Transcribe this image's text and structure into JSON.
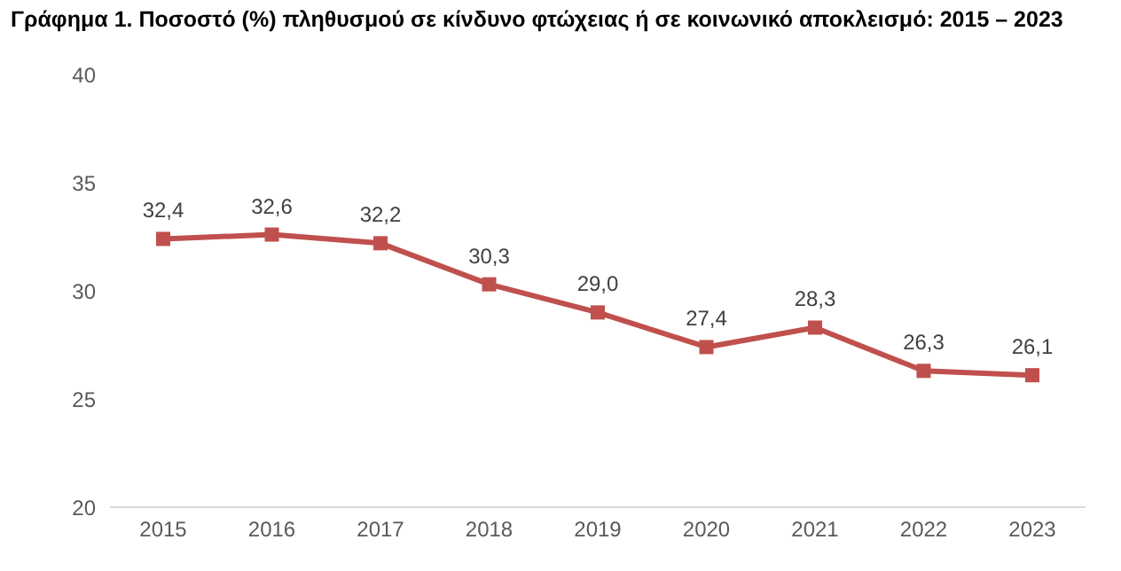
{
  "chart_data": {
    "type": "line",
    "title": "Γράφημα 1. Ποσοστό (%) πληθυσμού σε κίνδυνο φτώχειας ή σε κοινωνικό αποκλεισμό: 2015 – 2023",
    "categories": [
      "2015",
      "2016",
      "2017",
      "2018",
      "2019",
      "2020",
      "2021",
      "2022",
      "2023"
    ],
    "series": [
      {
        "color": "#c0504d",
        "values": [
          32.4,
          32.6,
          32.2,
          30.3,
          29.0,
          27.4,
          28.3,
          26.3,
          26.1
        ],
        "value_labels": [
          "32,4",
          "32,6",
          "32,2",
          "30,3",
          "29,0",
          "27,4",
          "28,3",
          "26,3",
          "26,1"
        ]
      }
    ],
    "ylim": [
      20,
      40
    ],
    "yticks": [
      20,
      25,
      30,
      35,
      40
    ],
    "grid": false,
    "marker": "square",
    "line_style": "solid"
  }
}
